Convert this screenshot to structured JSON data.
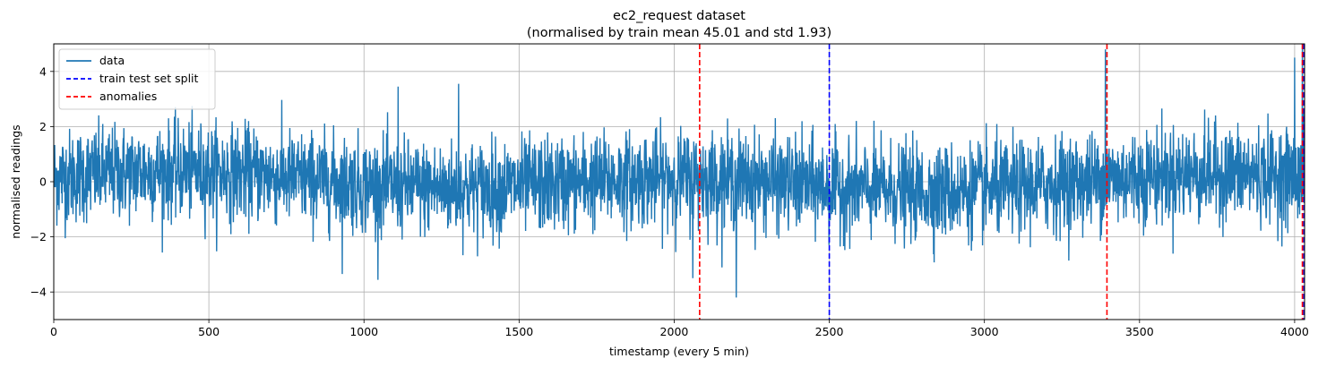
{
  "chart_data": {
    "type": "line",
    "title": "ec2_request dataset",
    "subtitle": "(normalised by train mean 45.01 and std 1.93)",
    "xlabel": "timestamp (every 5 min)",
    "ylabel": "normalised readings",
    "xlim": [
      0,
      4032
    ],
    "ylim": [
      -5,
      5
    ],
    "xticks": [
      0,
      500,
      1000,
      1500,
      2000,
      2500,
      3000,
      3500,
      4000
    ],
    "xtick_labels": [
      "0",
      "500",
      "1000",
      "1500",
      "2000",
      "2500",
      "3000",
      "3500",
      "4000"
    ],
    "yticks": [
      -4,
      -2,
      0,
      2,
      4
    ],
    "ytick_labels": [
      "−4",
      "−2",
      "0",
      "2",
      "4"
    ],
    "grid": true,
    "legend_position": "top-left",
    "series": [
      {
        "name": "data",
        "color": "#1f77b4",
        "style": "solid",
        "n_points": 4032,
        "mean": 0.0,
        "std": 1.0,
        "notable_points": [
          {
            "x": 930,
            "y": -3.35
          },
          {
            "x": 1110,
            "y": 3.45
          },
          {
            "x": 1305,
            "y": 3.55
          },
          {
            "x": 2060,
            "y": -3.5
          },
          {
            "x": 2200,
            "y": -4.2
          },
          {
            "x": 3390,
            "y": 4.8
          },
          {
            "x": 4000,
            "y": 4.5
          },
          {
            "x": 4025,
            "y": 5.0
          }
        ]
      },
      {
        "name": "train test set split",
        "color": "#0000ff",
        "style": "dashed",
        "x": [
          2500,
          4030
        ]
      },
      {
        "name": "anomalies",
        "color": "#ff0000",
        "style": "dashed",
        "x": [
          2082,
          3395,
          4025
        ]
      }
    ]
  }
}
